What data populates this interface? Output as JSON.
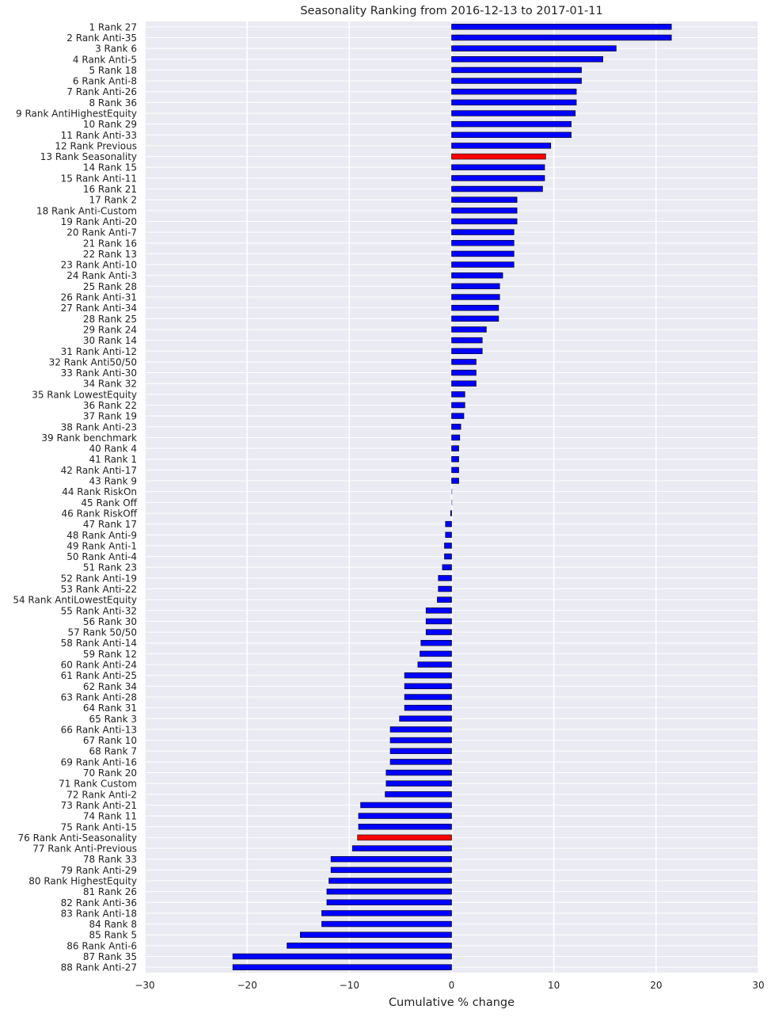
{
  "chart_data": {
    "type": "bar",
    "orientation": "horizontal",
    "title": "Seasonality Ranking from 2016-12-13 to 2017-01-11",
    "xlabel": "Cumulative % change",
    "ylabel": "",
    "xlim": [
      -30,
      30
    ],
    "xticks": [
      "−30",
      "−20",
      "−10",
      "0",
      "10",
      "20",
      "30"
    ],
    "grid": true,
    "legend": "none",
    "colors": {
      "default": "#0000ff",
      "highlight": "#ff0000",
      "background": "#eaeaf2",
      "grid": "#ffffff"
    },
    "categories": [
      "1 Rank 27",
      "2 Rank Anti-35",
      "3 Rank 6",
      "4 Rank Anti-5",
      "5 Rank 18",
      "6 Rank Anti-8",
      "7 Rank Anti-26",
      "8 Rank 36",
      "9 Rank AntiHighestEquity",
      "10 Rank 29",
      "11 Rank Anti-33",
      "12 Rank Previous",
      "13 Rank Seasonality",
      "14 Rank 15",
      "15 Rank Anti-11",
      "16 Rank 21",
      "17 Rank 2",
      "18 Rank Anti-Custom",
      "19 Rank Anti-20",
      "20 Rank Anti-7",
      "21 Rank 16",
      "22 Rank 13",
      "23 Rank Anti-10",
      "24 Rank Anti-3",
      "25 Rank 28",
      "26 Rank Anti-31",
      "27 Rank Anti-34",
      "28 Rank 25",
      "29 Rank 24",
      "30 Rank 14",
      "31 Rank Anti-12",
      "32 Rank Anti50/50",
      "33 Rank Anti-30",
      "34 Rank 32",
      "35 Rank LowestEquity",
      "36 Rank 22",
      "37 Rank 19",
      "38 Rank Anti-23",
      "39 Rank benchmark",
      "40 Rank 4",
      "41 Rank 1",
      "42 Rank Anti-17",
      "43 Rank 9",
      "44 Rank RiskOn",
      "45 Rank Off",
      "46 Rank RiskOff",
      "47 Rank 17",
      "48 Rank Anti-9",
      "49 Rank Anti-1",
      "50 Rank Anti-4",
      "51 Rank 23",
      "52 Rank Anti-19",
      "53 Rank Anti-22",
      "54 Rank AntiLowestEquity",
      "55 Rank Anti-32",
      "56 Rank 30",
      "57 Rank 50/50",
      "58 Rank Anti-14",
      "59 Rank 12",
      "60 Rank Anti-24",
      "61 Rank Anti-25",
      "62 Rank 34",
      "63 Rank Anti-28",
      "64 Rank 31",
      "65 Rank 3",
      "66 Rank Anti-13",
      "67 Rank 10",
      "68 Rank 7",
      "69 Rank Anti-16",
      "70 Rank 20",
      "71 Rank Custom",
      "72 Rank Anti-2",
      "73 Rank Anti-21",
      "74 Rank 11",
      "75 Rank Anti-15",
      "76 Rank Anti-Seasonality",
      "77 Rank Anti-Previous",
      "78 Rank 33",
      "79 Rank Anti-29",
      "80 Rank HighestEquity",
      "81 Rank 26",
      "82 Rank Anti-36",
      "83 Rank Anti-18",
      "84 Rank 8",
      "85 Rank 5",
      "86 Rank Anti-6",
      "87 Rank 35",
      "88 Rank Anti-27"
    ],
    "values": [
      21.5,
      21.5,
      16.1,
      14.8,
      12.7,
      12.7,
      12.2,
      12.2,
      12.1,
      11.7,
      11.7,
      9.7,
      9.2,
      9.1,
      9.1,
      8.9,
      6.4,
      6.4,
      6.4,
      6.1,
      6.1,
      6.1,
      6.1,
      5.0,
      4.7,
      4.7,
      4.6,
      4.6,
      3.4,
      3.0,
      3.0,
      2.4,
      2.4,
      2.4,
      1.3,
      1.3,
      1.2,
      0.9,
      0.8,
      0.7,
      0.7,
      0.7,
      0.7,
      0.05,
      0.05,
      -0.1,
      -0.6,
      -0.6,
      -0.7,
      -0.7,
      -0.9,
      -1.3,
      -1.3,
      -1.4,
      -2.5,
      -2.5,
      -2.5,
      -3.0,
      -3.1,
      -3.3,
      -4.6,
      -4.6,
      -4.6,
      -4.6,
      -5.1,
      -6.0,
      -6.0,
      -6.0,
      -6.0,
      -6.4,
      -6.4,
      -6.5,
      -8.9,
      -9.1,
      -9.1,
      -9.2,
      -9.7,
      -11.8,
      -11.8,
      -12.0,
      -12.2,
      -12.2,
      -12.7,
      -12.7,
      -14.8,
      -16.1,
      -21.4,
      -21.4
    ],
    "highlight": [
      "13 Rank Seasonality",
      "76 Rank Anti-Seasonality"
    ]
  }
}
